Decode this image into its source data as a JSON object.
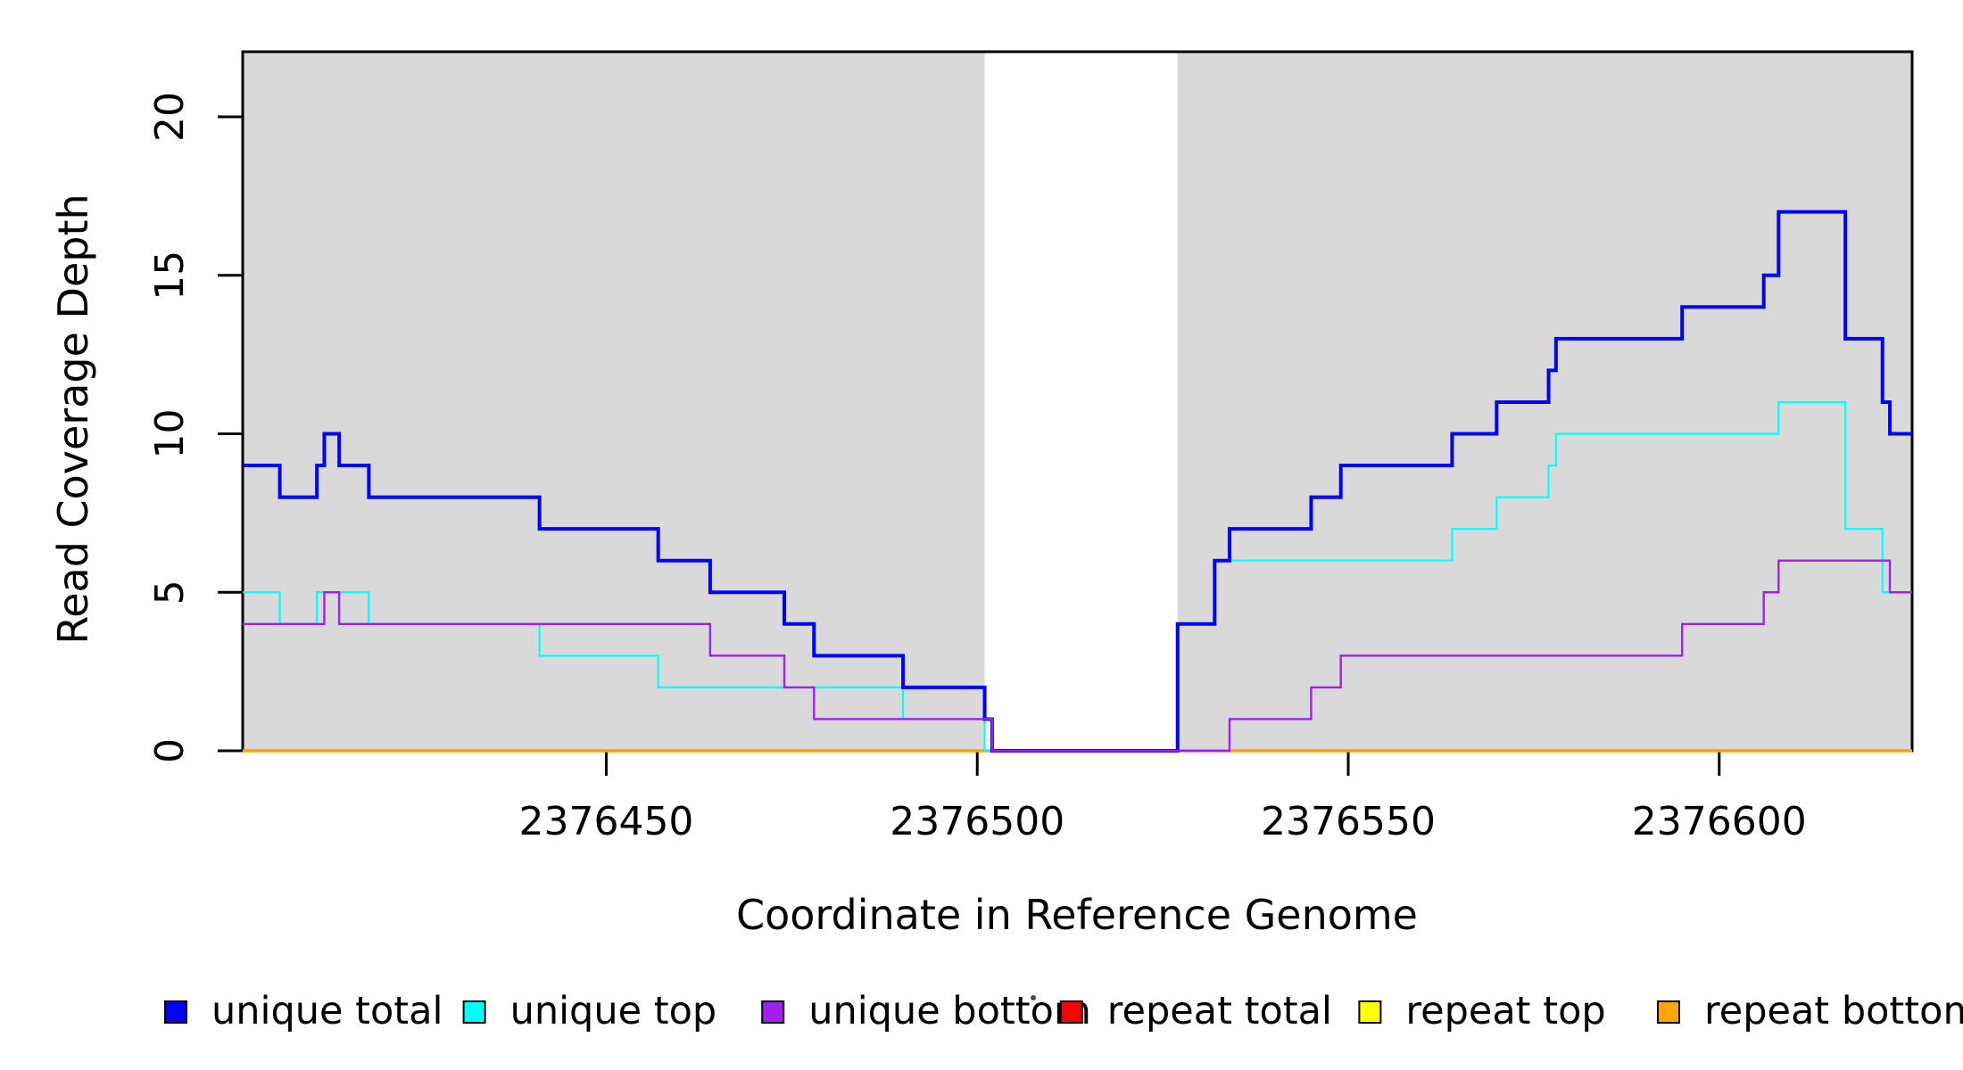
{
  "chart_data": {
    "type": "line",
    "subtype": "step-post-coverage-plot",
    "title": "",
    "xlabel": "Coordinate in Reference Genome",
    "ylabel": "Read Coverage Depth",
    "xlim": [
      2376401,
      2376626
    ],
    "ylim": [
      0,
      22
    ],
    "grid": "off",
    "x_ticks": [
      2376450,
      2376500,
      2376550,
      2376600
    ],
    "x_tick_labels": [
      "2376450",
      "2376500",
      "2376550",
      "2376600"
    ],
    "y_ticks": [
      0,
      5,
      10,
      15,
      20
    ],
    "y_tick_labels": [
      "0",
      "5",
      "10",
      "15",
      "20"
    ],
    "background_color": "#ffffff",
    "shaded_regions": [
      {
        "x0": 2376401,
        "x1": 2376501,
        "color": "#D9D9D9"
      },
      {
        "x0": 2376527,
        "x1": 2376626,
        "color": "#D9D9D9"
      }
    ],
    "uncovered_gap": {
      "x0": 2376501,
      "x1": 2376527
    },
    "series": [
      {
        "name": "repeat total",
        "color": "#FF0000",
        "width": 3,
        "changes": [
          [
            2376401,
            0
          ]
        ]
      },
      {
        "name": "repeat top",
        "color": "#FFFF00",
        "width": 3,
        "changes": [
          [
            2376401,
            0
          ]
        ]
      },
      {
        "name": "repeat bottom",
        "color": "#FFA500",
        "width": 3.5,
        "changes": [
          [
            2376401,
            0
          ]
        ]
      },
      {
        "name": "unique top",
        "color": "#00FFFF",
        "width": 2.2,
        "changes": [
          [
            2376401,
            5
          ],
          [
            2376406,
            4
          ],
          [
            2376411,
            5
          ],
          [
            2376418,
            4
          ],
          [
            2376441,
            3
          ],
          [
            2376457,
            2
          ],
          [
            2376490,
            1
          ],
          [
            2376501,
            0
          ],
          [
            2376527,
            4
          ],
          [
            2376532,
            6
          ],
          [
            2376564,
            7
          ],
          [
            2376570,
            8
          ],
          [
            2376577,
            9
          ],
          [
            2376578,
            10
          ],
          [
            2376608,
            11
          ],
          [
            2376617,
            7
          ],
          [
            2376622,
            5
          ]
        ]
      },
      {
        "name": "unique total",
        "color": "#0000FF",
        "width": 4,
        "changes": [
          [
            2376401,
            9
          ],
          [
            2376406,
            8
          ],
          [
            2376411,
            9
          ],
          [
            2376412,
            10
          ],
          [
            2376414,
            9
          ],
          [
            2376418,
            8
          ],
          [
            2376441,
            7
          ],
          [
            2376457,
            6
          ],
          [
            2376464,
            5
          ],
          [
            2376474,
            4
          ],
          [
            2376478,
            3
          ],
          [
            2376490,
            2
          ],
          [
            2376501,
            1
          ],
          [
            2376502,
            0
          ],
          [
            2376527,
            4
          ],
          [
            2376532,
            6
          ],
          [
            2376534,
            7
          ],
          [
            2376545,
            8
          ],
          [
            2376549,
            9
          ],
          [
            2376564,
            10
          ],
          [
            2376570,
            11
          ],
          [
            2376577,
            12
          ],
          [
            2376578,
            13
          ],
          [
            2376595,
            14
          ],
          [
            2376606,
            15
          ],
          [
            2376608,
            17
          ],
          [
            2376617,
            13
          ],
          [
            2376622,
            11
          ],
          [
            2376623,
            10
          ]
        ]
      },
      {
        "name": "unique bottom",
        "color": "#A020F0",
        "width": 2.4,
        "changes": [
          [
            2376401,
            4
          ],
          [
            2376412,
            5
          ],
          [
            2376414,
            4
          ],
          [
            2376464,
            3
          ],
          [
            2376474,
            2
          ],
          [
            2376478,
            1
          ],
          [
            2376502,
            0
          ],
          [
            2376534,
            1
          ],
          [
            2376545,
            2
          ],
          [
            2376549,
            3
          ],
          [
            2376595,
            4
          ],
          [
            2376606,
            5
          ],
          [
            2376608,
            6
          ],
          [
            2376623,
            5
          ]
        ]
      }
    ],
    "legend": {
      "position": "bottom",
      "items": [
        {
          "label": "unique total",
          "color": "#0000FF"
        },
        {
          "label": "unique top",
          "color": "#00FFFF"
        },
        {
          "label": "unique bottom",
          "color": "#A020F0"
        },
        {
          "label": "repeat total",
          "color": "#FF0000"
        },
        {
          "label": "repeat top",
          "color": "#FFFF00"
        },
        {
          "label": "repeat bottom",
          "color": "#FFA500"
        }
      ]
    }
  }
}
